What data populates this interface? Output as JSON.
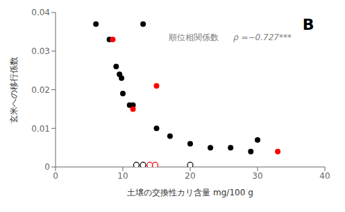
{
  "chart_data": {
    "type": "scatter",
    "xlabel": "土壌の交換性カリ含量 mg/100 g",
    "ylabel": "玄米への移行係数",
    "xlim": [
      0,
      40
    ],
    "ylim": [
      0,
      0.04
    ],
    "xticks": [
      0,
      10,
      20,
      30,
      40
    ],
    "yticks": [
      0,
      0.01,
      0.02,
      0.03,
      0.04
    ],
    "grid": false,
    "series": [
      {
        "color": "black",
        "marker": "circle",
        "x": [
          6,
          8,
          9,
          9.5,
          9.8,
          10,
          11,
          11.5,
          13,
          15,
          17,
          20,
          23,
          26,
          29,
          30
        ],
        "values": [
          0.037,
          0.033,
          0.026,
          0.024,
          0.023,
          0.019,
          0.016,
          0.016,
          0.037,
          0.01,
          0.008,
          0.006,
          0.005,
          0.005,
          0.004,
          0.007
        ]
      },
      {
        "color": "red",
        "marker": "circle",
        "x": [
          8.5,
          11.5,
          15,
          33
        ],
        "values": [
          0.033,
          0.015,
          0.021,
          0.004
        ]
      },
      {
        "color": "black",
        "marker": "open_circle",
        "x": [
          12,
          13,
          20
        ],
        "values": [
          0.0005,
          0.0005,
          0.0005
        ]
      },
      {
        "color": "red",
        "marker": "open_circle",
        "x": [
          14,
          14.8
        ],
        "values": [
          0.0005,
          0.0005
        ]
      }
    ],
    "annotations": [
      {
        "text": "順位相関係数",
        "color": "#808080"
      },
      {
        "text": "ρ =−0.727***",
        "color": "#808080"
      },
      {
        "text": "B",
        "color": "black"
      }
    ]
  }
}
